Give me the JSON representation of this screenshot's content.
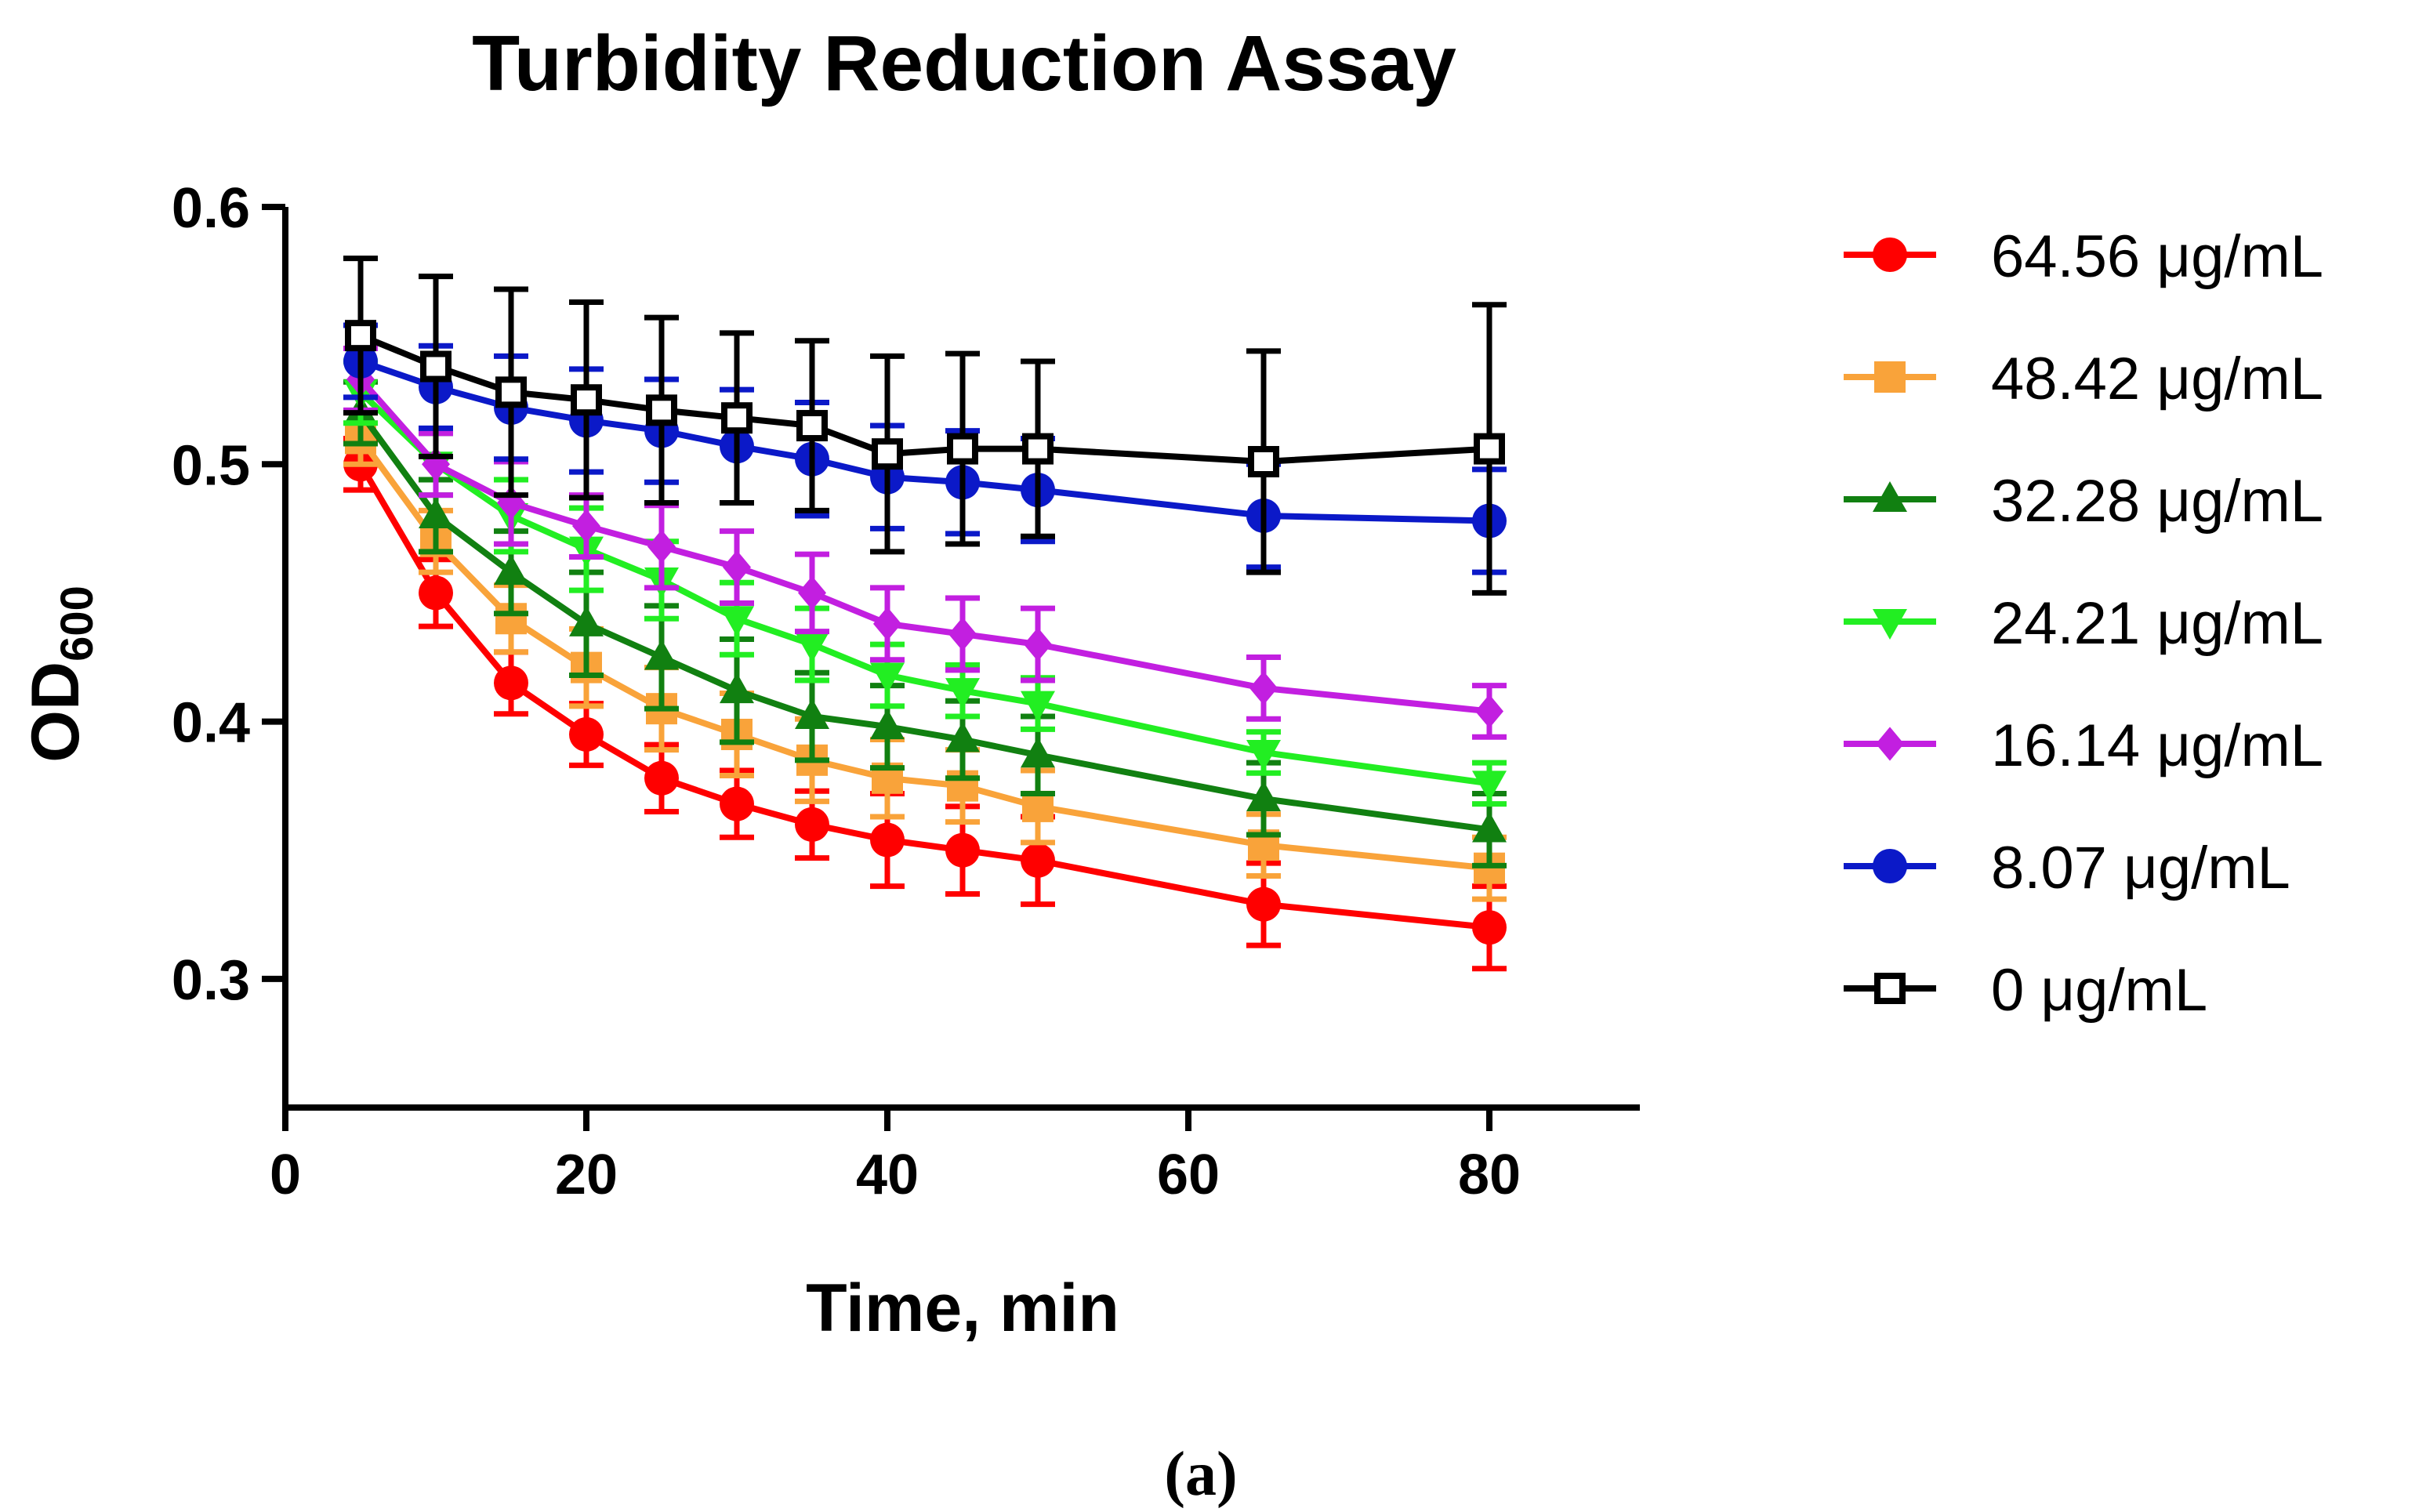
{
  "chart_data": {
    "type": "line",
    "title": "Turbidity Reduction Assay",
    "xlabel": "Time, min",
    "ylabel": "OD",
    "ylabel_subscript": "600",
    "caption": "(a)",
    "xlim": [
      0,
      90
    ],
    "ylim": [
      0.25,
      0.6
    ],
    "xticks": [
      0,
      20,
      40,
      60,
      80
    ],
    "xtick_labels": [
      "0",
      "20",
      "40",
      "60",
      "80"
    ],
    "yticks": [
      0.3,
      0.4,
      0.5,
      0.6
    ],
    "ytick_labels": [
      "0.3",
      "0.4",
      "0.5",
      "0.6"
    ],
    "legend_position": "right",
    "x": [
      5,
      10,
      15,
      20,
      25,
      30,
      35,
      40,
      45,
      50,
      65,
      80
    ],
    "series": [
      {
        "name": "64.56 μg/mL",
        "color": "#ff0000",
        "marker": "circle",
        "values": [
          0.5,
          0.45,
          0.415,
          0.395,
          0.378,
          0.368,
          0.36,
          0.354,
          0.35,
          0.346,
          0.329,
          0.32
        ],
        "errors": [
          0.01,
          0.013,
          0.012,
          0.012,
          0.013,
          0.013,
          0.013,
          0.018,
          0.017,
          0.017,
          0.016,
          0.016
        ]
      },
      {
        "name": "48.42 μg/mL",
        "color": "#f9a33a",
        "marker": "square",
        "values": [
          0.51,
          0.47,
          0.44,
          0.421,
          0.405,
          0.395,
          0.385,
          0.378,
          0.375,
          0.367,
          0.352,
          0.343
        ],
        "errors": [
          0.01,
          0.012,
          0.013,
          0.015,
          0.016,
          0.016,
          0.016,
          0.015,
          0.014,
          0.014,
          0.012,
          0.012
        ]
      },
      {
        "name": "32.28 μg/mL",
        "color": "#118011",
        "marker": "triangle-up",
        "values": [
          0.52,
          0.48,
          0.458,
          0.438,
          0.425,
          0.412,
          0.402,
          0.398,
          0.393,
          0.387,
          0.37,
          0.358
        ],
        "errors": [
          0.012,
          0.014,
          0.016,
          0.02,
          0.02,
          0.02,
          0.017,
          0.016,
          0.015,
          0.015,
          0.014,
          0.014
        ]
      },
      {
        "name": "24.21 μg/mL",
        "color": "#22ee22",
        "marker": "triangle-down",
        "values": [
          0.528,
          0.5,
          0.48,
          0.467,
          0.455,
          0.44,
          0.43,
          0.418,
          0.412,
          0.407,
          0.388,
          0.376
        ],
        "errors": [
          0.012,
          0.012,
          0.014,
          0.016,
          0.015,
          0.014,
          0.014,
          0.012,
          0.01,
          0.01,
          0.008,
          0.008
        ]
      },
      {
        "name": "16.14 μg/mL",
        "color": "#c21fe0",
        "marker": "diamond",
        "values": [
          0.533,
          0.5,
          0.485,
          0.476,
          0.468,
          0.46,
          0.45,
          0.438,
          0.434,
          0.43,
          0.413,
          0.404
        ],
        "errors": [
          0.012,
          0.012,
          0.016,
          0.012,
          0.016,
          0.014,
          0.015,
          0.014,
          0.014,
          0.014,
          0.012,
          0.01
        ]
      },
      {
        "name": "8.07 μg/mL",
        "color": "#0b19c8",
        "marker": "circle",
        "values": [
          0.54,
          0.53,
          0.522,
          0.517,
          0.513,
          0.507,
          0.502,
          0.495,
          0.493,
          0.49,
          0.48,
          0.478
        ],
        "errors": [
          0.014,
          0.016,
          0.02,
          0.02,
          0.02,
          0.022,
          0.022,
          0.02,
          0.02,
          0.02,
          0.02,
          0.02
        ]
      },
      {
        "name": "0 μg/mL",
        "color": "#000000",
        "marker": "open-square",
        "values": [
          0.55,
          0.538,
          0.528,
          0.525,
          0.521,
          0.518,
          0.515,
          0.504,
          0.506,
          0.506,
          0.501,
          0.506
        ],
        "errors": [
          0.03,
          0.035,
          0.04,
          0.038,
          0.036,
          0.033,
          0.033,
          0.038,
          0.037,
          0.034,
          0.043,
          0.056
        ]
      }
    ]
  }
}
